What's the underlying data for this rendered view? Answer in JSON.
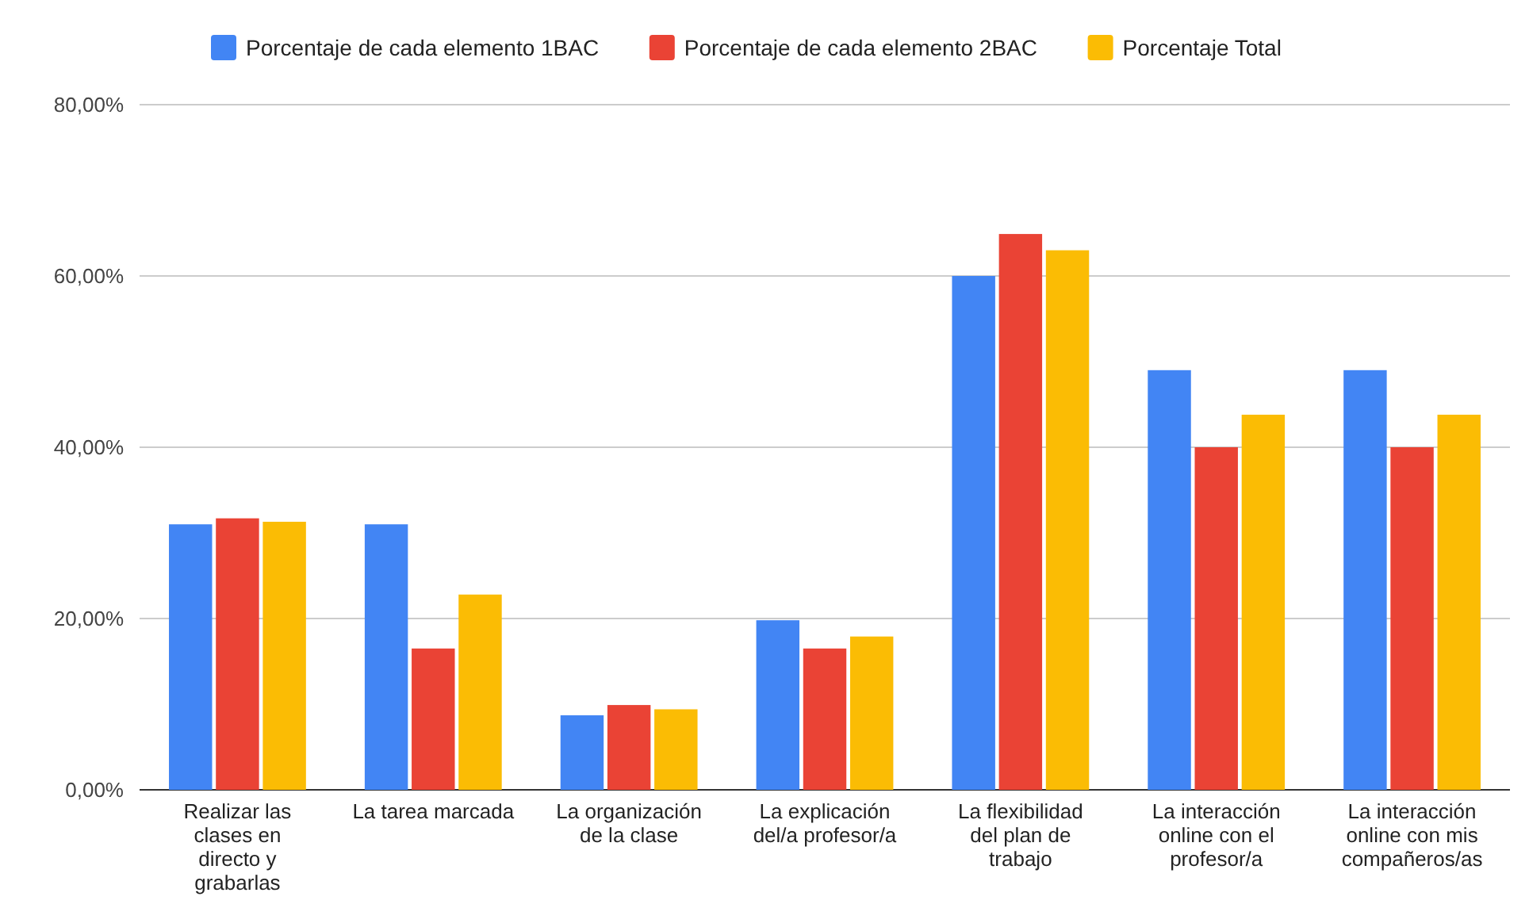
{
  "chart_data": {
    "type": "bar",
    "categories": [
      "Realizar las clases en directo y grabarlas",
      "La tarea marcada",
      "La organización de la clase",
      "La explicación del/a profesor/a",
      "La flexibilidad del plan de trabajo",
      "La interacción online con el profesor/a",
      "La interacción online con mis compañeros/as"
    ],
    "series": [
      {
        "name": "Porcentaje de cada elemento 1BAC",
        "color": "#4285f4",
        "values": [
          31,
          31,
          8.7,
          19.8,
          60,
          49,
          49
        ]
      },
      {
        "name": "Porcentaje de cada elemento 2BAC",
        "color": "#ea4335",
        "values": [
          31.7,
          16.5,
          9.9,
          16.5,
          64.9,
          40,
          40
        ]
      },
      {
        "name": "Porcentaje Total",
        "color": "#fbbc04",
        "values": [
          31.3,
          22.8,
          9.4,
          17.9,
          63,
          43.8,
          43.8
        ]
      }
    ],
    "ylim": [
      0,
      80
    ],
    "yticks": [
      {
        "value": 0,
        "label": "0,00%"
      },
      {
        "value": 20,
        "label": "20,00%"
      },
      {
        "value": 40,
        "label": "40,00%"
      },
      {
        "value": 60,
        "label": "60,00%"
      },
      {
        "value": 80,
        "label": "80,00%"
      }
    ],
    "grid": "y",
    "legend": "top"
  }
}
